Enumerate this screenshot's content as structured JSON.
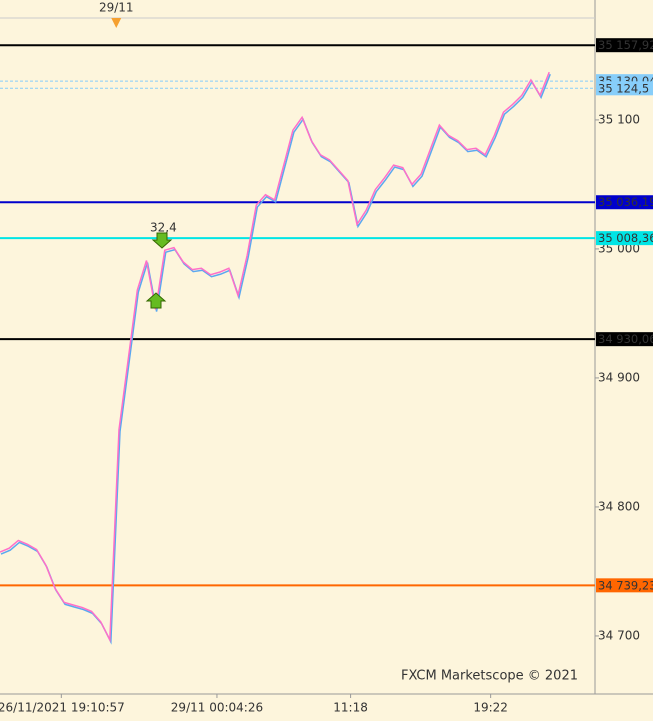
{
  "chart_data": {
    "type": "line",
    "watermark": "FXCM Marketscope © 2021",
    "top_marker": {
      "value": 12.7,
      "label": "29/11"
    },
    "annotation": "32,4",
    "xlim": [
      0,
      65
    ],
    "ylim": [
      34655,
      35179
    ],
    "xticks": [
      {
        "value": 6.7,
        "label": "26/11/2021 19:10:57"
      },
      {
        "value": 23.7,
        "label": "29/11 00:04:26"
      },
      {
        "value": 38.3,
        "label": "11:18"
      },
      {
        "value": 53.6,
        "label": "19:22"
      }
    ],
    "yticks": [
      {
        "value": 34700,
        "label": "34 700"
      },
      {
        "value": 34800,
        "label": "34 800"
      },
      {
        "value": 34900,
        "label": "34 900"
      },
      {
        "value": 35000,
        "label": "35 000"
      },
      {
        "value": 35100,
        "label": "35 100"
      }
    ],
    "levels": [
      {
        "value": 35157.92,
        "label": "35 157,92",
        "color": "#000000",
        "text_color": "#ffffff",
        "dashed": false
      },
      {
        "value": 35130.04,
        "label": "35 130,04",
        "color": "#87cefa",
        "text_color": "#003366",
        "dashed": true
      },
      {
        "value": 35124.5,
        "label": "35 124,5",
        "color": "#87cefa",
        "text_color": "#003366",
        "dashed": true
      },
      {
        "value": 35036.19,
        "label": "35 036,19",
        "color": "#0000cc",
        "text_color": "#ffffff",
        "dashed": false
      },
      {
        "value": 35008.36,
        "label": "35 008,36",
        "color": "#00e5e5",
        "text_color": "#003333",
        "dashed": false
      },
      {
        "value": 34930.06,
        "label": "34 930,06",
        "color": "#000000",
        "text_color": "#ffffff",
        "dashed": false
      },
      {
        "value": 34739.23,
        "label": "34 739,23",
        "color": "#ff6600",
        "text_color": "#ffffff",
        "dashed": false
      }
    ],
    "series": [
      {
        "color": "#ff6fc8",
        "x": [
          0,
          1,
          2,
          3,
          4,
          5,
          6,
          7,
          8,
          9,
          10,
          11,
          12,
          13,
          14,
          15,
          16,
          17,
          18,
          19,
          20,
          21,
          22,
          23,
          24,
          25,
          26,
          27,
          28,
          29,
          30,
          31,
          32,
          33,
          34,
          35,
          36,
          37,
          38,
          39,
          40,
          41,
          42,
          43,
          44,
          45,
          46,
          47,
          48,
          49,
          50,
          51,
          52,
          53,
          54,
          55,
          56,
          57,
          58,
          59,
          60
        ],
        "values": [
          34765,
          34768,
          34774,
          34771,
          34767,
          34755,
          34737,
          34726,
          34724,
          34722,
          34719,
          34711,
          34697,
          34860,
          34914,
          34968,
          34991,
          34953,
          34999,
          35001,
          34990,
          34984,
          34985,
          34980,
          34982,
          34985,
          34964,
          34995,
          35034,
          35042,
          35038,
          35065,
          35092,
          35102,
          35084,
          35073,
          35069,
          35061,
          35053,
          35019,
          35030,
          35046,
          35055,
          35065,
          35063,
          35050,
          35058,
          35077,
          35096,
          35088,
          35084,
          35077,
          35078,
          35073,
          35088,
          35106,
          35112,
          35119,
          35131,
          35119,
          35137
        ]
      }
    ]
  }
}
